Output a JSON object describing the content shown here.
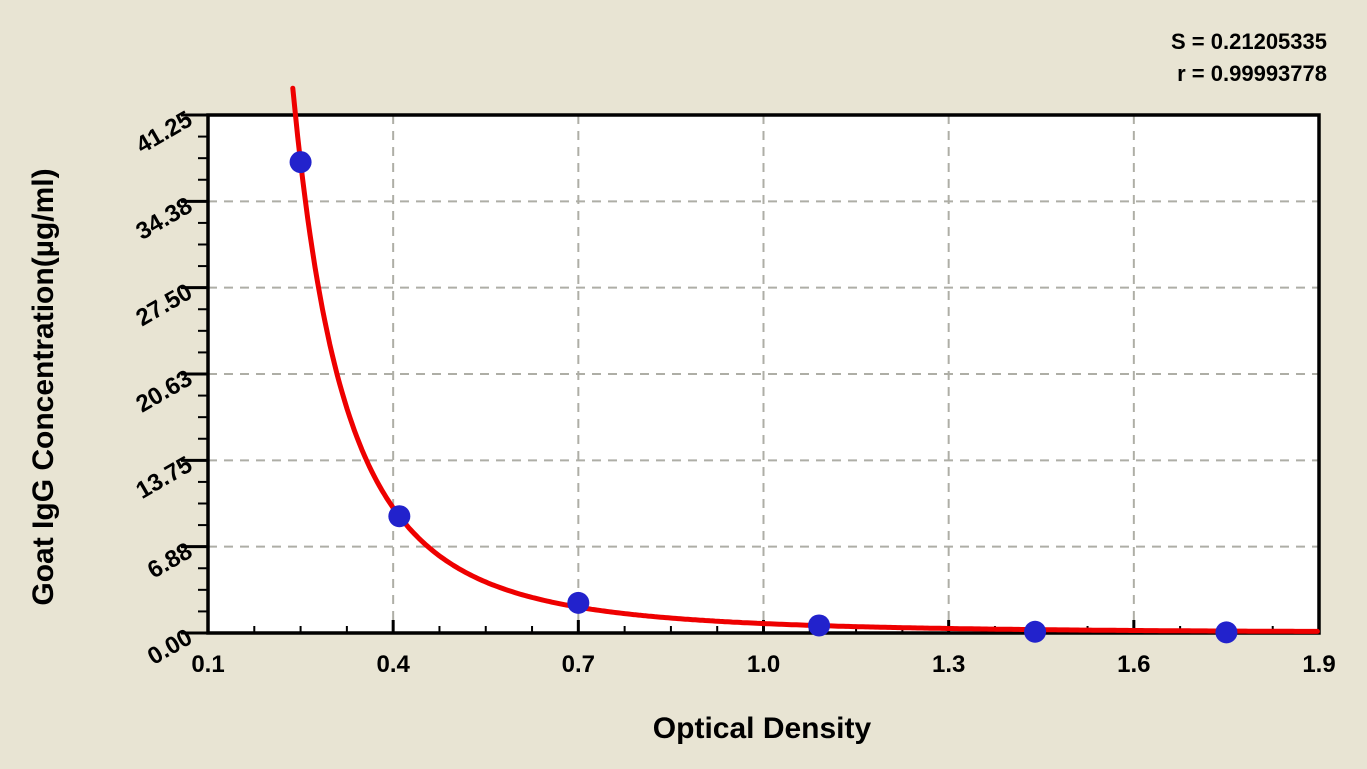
{
  "stats": {
    "s_line": "S = 0.21205335",
    "r_line": "r = 0.99993778"
  },
  "chart_data": {
    "type": "scatter",
    "title": "",
    "xlabel": "Optical Density",
    "ylabel": "Goat IgG Concentration(µg/ml)",
    "xlim": [
      0.1,
      1.9
    ],
    "ylim": [
      0,
      41.25
    ],
    "grid": "dashed, at every major tick",
    "legend_position": "none",
    "x_ticks": {
      "values": [
        0.1,
        0.4,
        0.7,
        1.0,
        1.3,
        1.6,
        1.9
      ],
      "labels": [
        "0.1",
        "0.4",
        "0.7",
        "1.0",
        "1.3",
        "1.6",
        "1.9"
      ],
      "minor_per_interval": 3
    },
    "y_ticks": {
      "values": [
        0,
        6.875,
        13.75,
        20.625,
        27.5,
        34.375,
        41.25
      ],
      "labels": [
        "0.00",
        "6.88",
        "13.75",
        "20.63",
        "27.50",
        "34.38",
        "41.25"
      ],
      "minor_per_interval": 3,
      "label_rotation_deg": -30
    },
    "points": [
      {
        "od": 0.25,
        "conc": 37.5
      },
      {
        "od": 0.41,
        "conc": 9.3
      },
      {
        "od": 0.7,
        "conc": 2.4
      },
      {
        "od": 1.09,
        "conc": 0.6
      },
      {
        "od": 1.44,
        "conc": 0.1
      },
      {
        "od": 1.75,
        "conc": 0.05
      }
    ],
    "fit_curve": {
      "model": "power: conc = a * OD^b",
      "a": 0.753,
      "b": -2.819,
      "od_start": 0.2374,
      "od_end": 1.9,
      "S": "0.21205335",
      "r": "0.99993778"
    },
    "colors": {
      "background": "#e8e4d3",
      "plot_background": "#ffffff",
      "curve": "#ee0000",
      "points": "#2222cc",
      "grid": "#aeaea6",
      "axis": "#000000",
      "text": "#000000"
    }
  }
}
